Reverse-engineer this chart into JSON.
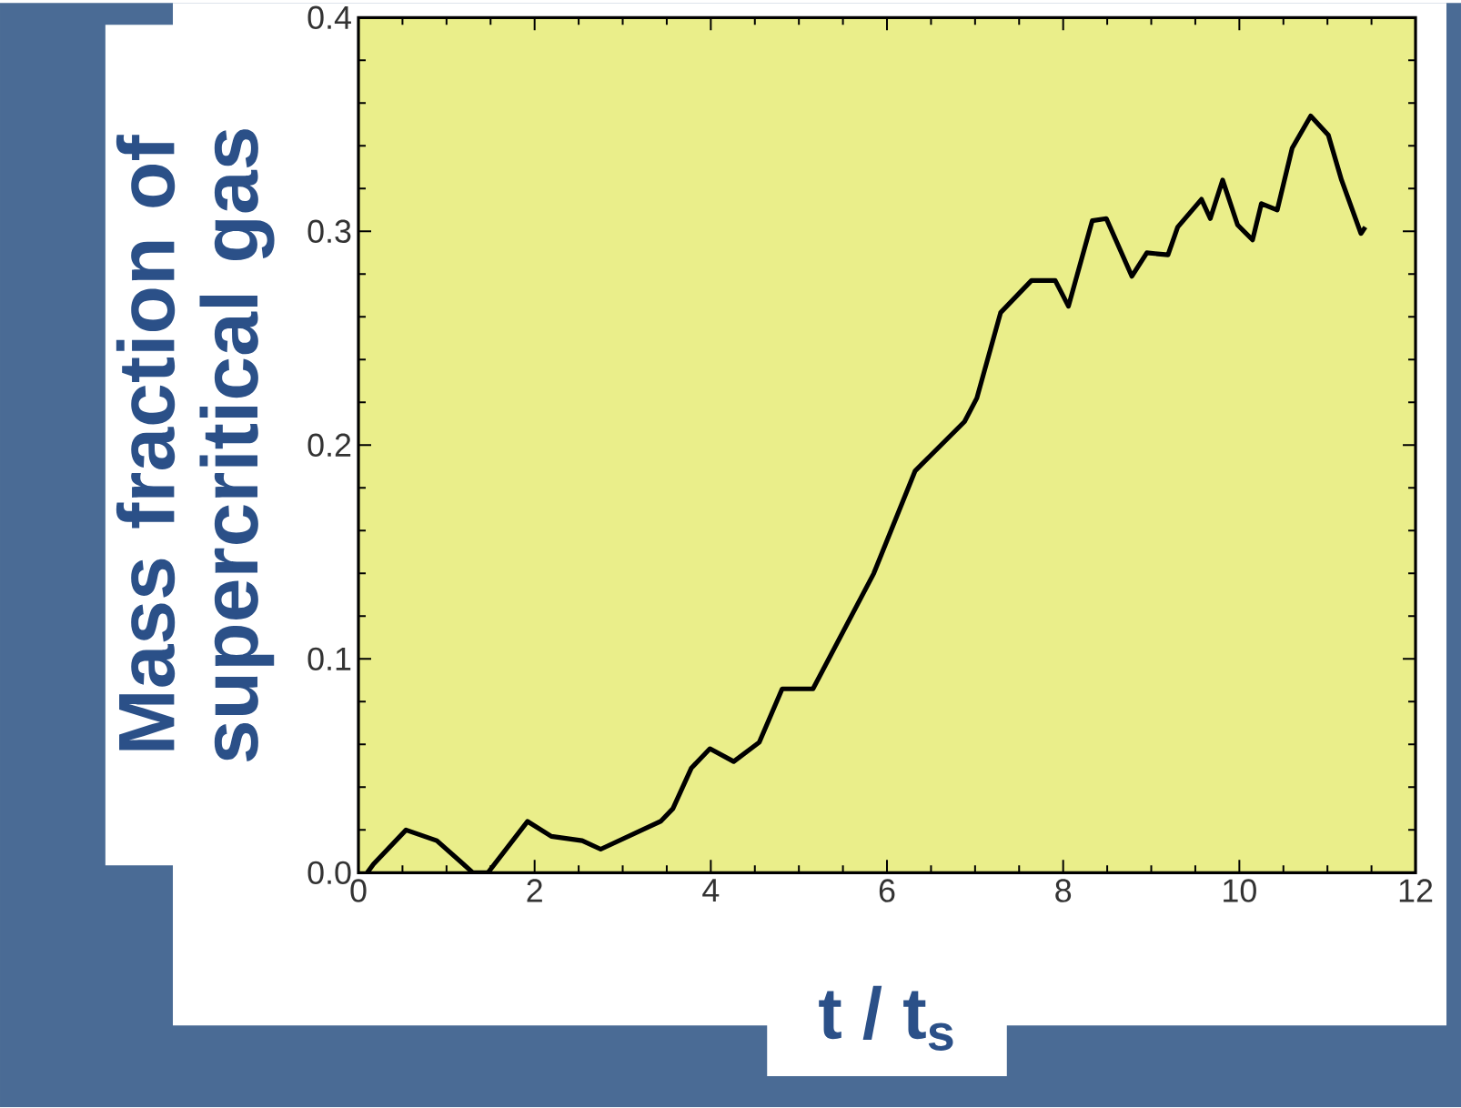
{
  "chart_data": {
    "type": "line",
    "xlabel": "t / t$_{s}$",
    "ylabel": "Mass fraction of supercritical gas",
    "x": [
      0.1,
      0.17,
      0.54,
      0.89,
      1.3,
      1.47,
      1.92,
      2.19,
      2.54,
      2.75,
      3.43,
      3.57,
      3.78,
      3.99,
      4.26,
      4.55,
      4.81,
      5.16,
      5.85,
      6.32,
      6.88,
      7.02,
      7.29,
      7.64,
      7.91,
      8.06,
      8.33,
      8.49,
      8.78,
      8.95,
      9.19,
      9.3,
      9.57,
      9.67,
      9.81,
      9.98,
      10.15,
      10.25,
      10.43,
      10.6,
      10.81,
      11.01,
      11.16,
      11.38,
      11.43
    ],
    "series": [
      {
        "color": "#000000",
        "values": [
          0.0,
          0.004,
          0.02,
          0.015,
          0.0,
          0.0,
          0.024,
          0.017,
          0.015,
          0.011,
          0.024,
          0.03,
          0.049,
          0.058,
          0.052,
          0.061,
          0.086,
          0.086,
          0.14,
          0.188,
          0.211,
          0.222,
          0.262,
          0.277,
          0.277,
          0.265,
          0.305,
          0.306,
          0.279,
          0.29,
          0.289,
          0.302,
          0.315,
          0.306,
          0.324,
          0.303,
          0.296,
          0.313,
          0.31,
          0.339,
          0.354,
          0.345,
          0.324,
          0.299,
          0.302
        ]
      }
    ],
    "xlim": [
      0,
      12
    ],
    "ylim": [
      0,
      0.4
    ],
    "xticks": [
      0,
      2,
      4,
      6,
      8,
      10,
      12
    ],
    "yticks": [
      {
        "value": 0,
        "label": "0.0"
      },
      {
        "value": 0.1,
        "label": "0.1"
      },
      {
        "value": 0.2,
        "label": "0.2"
      },
      {
        "value": 0.3,
        "label": "0.3"
      },
      {
        "value": 0.4,
        "label": "0.4"
      }
    ]
  }
}
